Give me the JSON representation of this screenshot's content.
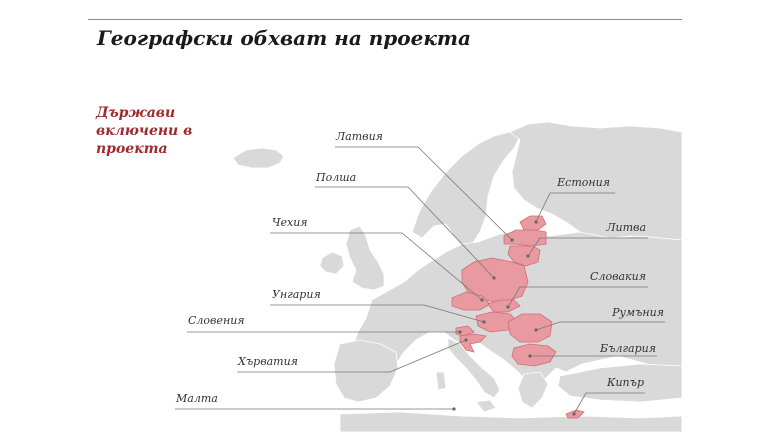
{
  "title": "Географски обхват на проекта",
  "subtitle_lines": [
    "Държави",
    "включени в",
    "проекта"
  ],
  "colors": {
    "highlight": "#e89aa0",
    "highlight_stroke": "#d06d76",
    "land": "#d9d9d9",
    "accent_text": "#9e2a2b",
    "leader": "#777777"
  },
  "countries": {
    "latvia": "Латвия",
    "estonia": "Естония",
    "poland": "Полша",
    "lithuania": "Литва",
    "czechia": "Чехия",
    "slovakia": "Словакия",
    "hungary": "Унгария",
    "slovenia": "Словения",
    "romania": "Румъния",
    "croatia": "Хърватия",
    "bulgaria": "България",
    "malta": "Малта",
    "cyprus": "Кипър"
  }
}
